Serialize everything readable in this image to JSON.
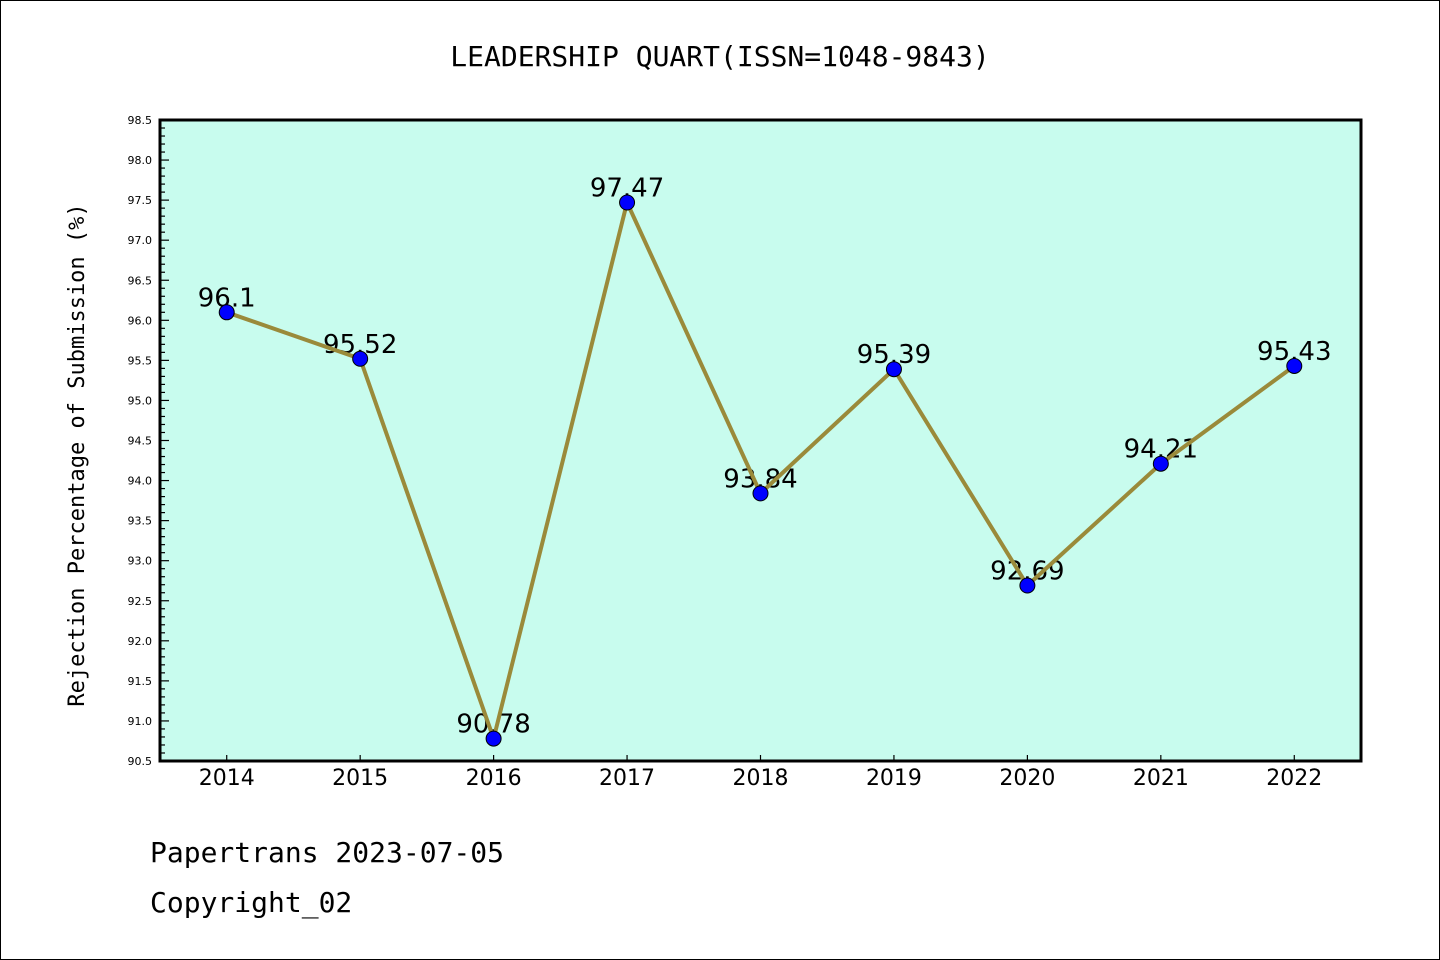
{
  "chart_data": {
    "type": "line",
    "title": "LEADERSHIP QUART(ISSN=1048-9843)",
    "xlabel": "",
    "ylabel": "Rejection Percentage of Submission (%)",
    "categories": [
      "2014",
      "2015",
      "2016",
      "2017",
      "2018",
      "2019",
      "2020",
      "2021",
      "2022"
    ],
    "series": [
      {
        "name": "Rejection Percentage",
        "values": [
          96.1,
          95.52,
          90.78,
          97.47,
          93.84,
          95.39,
          92.69,
          94.21,
          95.43
        ]
      }
    ],
    "data_labels": [
      "96.1",
      "95.52",
      "90.78",
      "97.47",
      "93.84",
      "95.39",
      "92.69",
      "94.21",
      "95.43"
    ],
    "ylim": [
      90.5,
      98.5
    ],
    "yticks": [
      "90.5",
      "91.0",
      "91.5",
      "92.0",
      "92.5",
      "93.0",
      "93.5",
      "94.0",
      "94.5",
      "95.0",
      "95.5",
      "96.0",
      "96.5",
      "97.0",
      "97.5",
      "98.0",
      "98.5"
    ],
    "grid": false,
    "colors": {
      "background": "#c8fcee",
      "line": "#9a8a3a",
      "marker": "#0000ff"
    }
  },
  "footer": {
    "line1": "Papertrans 2023-07-05",
    "line2": "Copyright_02"
  }
}
